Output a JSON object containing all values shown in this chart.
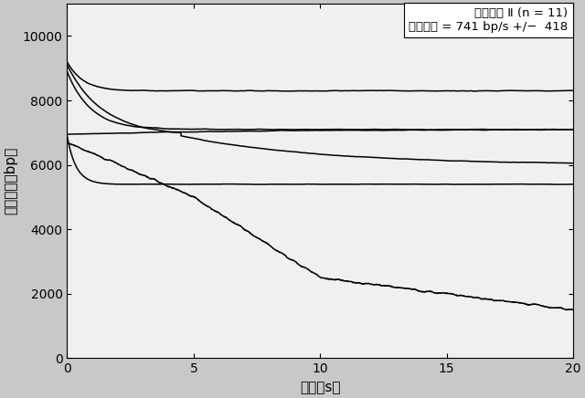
{
  "title_line1": "完全頭部 Ⅱ (n = 11)",
  "title_line2": "平均速度 = 741 bp/s +/−  418",
  "xlabel": "時間（s）",
  "ylabel": "テザー長（bp）",
  "xlim": [
    0,
    20
  ],
  "ylim": [
    0,
    11000
  ],
  "yticks": [
    0,
    2000,
    4000,
    6000,
    8000,
    10000
  ],
  "xticks": [
    0,
    5,
    10,
    15,
    20
  ],
  "line_color": "#000000",
  "fig_bg": "#c8c8c8",
  "ax_bg": "#f0f0f0"
}
